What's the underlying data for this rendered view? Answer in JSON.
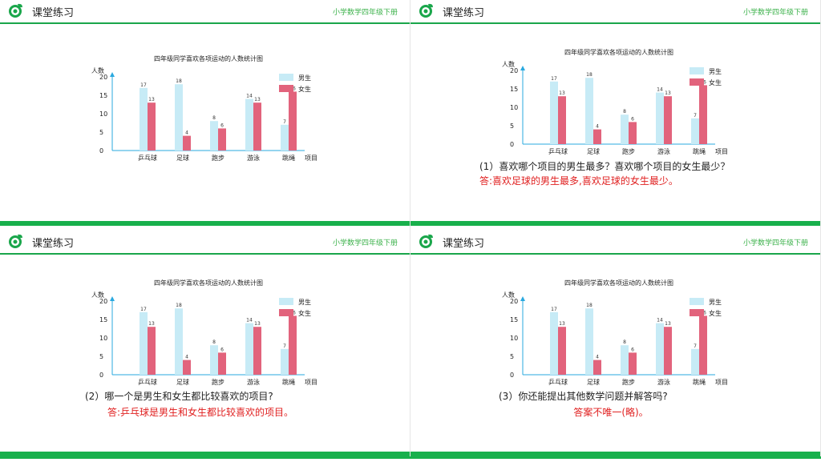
{
  "header": {
    "title": "课堂练习",
    "subject": "小学数学四年级下册",
    "logo_icon": "target-leaf-icon",
    "accent": "#1aa64b"
  },
  "chart_data": {
    "type": "bar",
    "title": "四年级同学喜欢各项运动的人数统计图",
    "ylabel": "人数",
    "xlabel": "项目",
    "categories": [
      "乒乓球",
      "足球",
      "跑步",
      "游泳",
      "跳绳"
    ],
    "series": [
      {
        "name": "男生",
        "values": [
          17,
          18,
          8,
          14,
          7
        ],
        "color": "#c7ebf6"
      },
      {
        "name": "女生",
        "values": [
          13,
          4,
          6,
          13,
          16
        ],
        "color": "#e2637c"
      }
    ],
    "yticks": [
      0,
      5,
      10,
      15,
      20
    ],
    "ylim": [
      0,
      20
    ],
    "legend": "top-right",
    "grid": false
  },
  "questions": {
    "q1": "(1）喜欢哪个项目的男生最多？喜欢哪个项目的女生最少？",
    "a1": "答:喜欢足球的男生最多,喜欢足球的女生最少。",
    "q2": "(2）哪一个是男生和女生都比较喜欢的项目?",
    "a2": "答:乒乓球是男生和女生都比较喜欢的项目。",
    "q3": "(3）你还能提出其他数学问题并解答吗?",
    "a3": "答案不唯一(略)。"
  }
}
